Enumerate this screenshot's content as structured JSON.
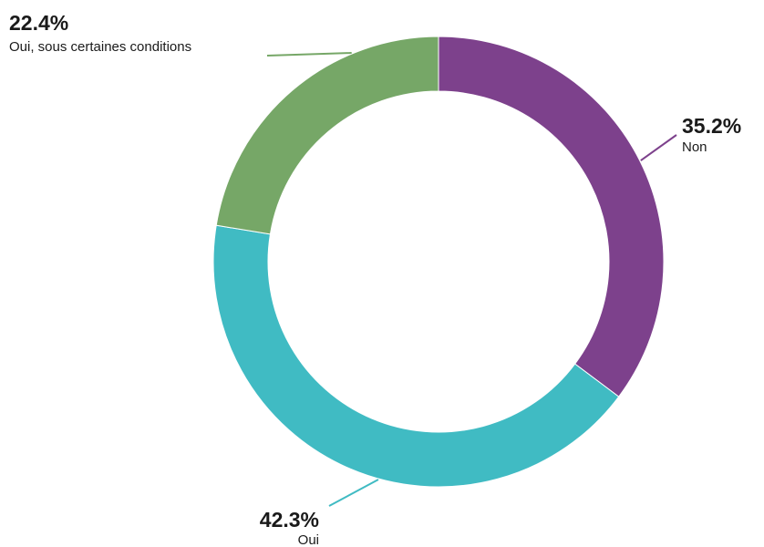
{
  "chart_data": {
    "type": "pie",
    "donut": true,
    "categories": [
      "Non",
      "Oui",
      "Oui, sous certaines conditions"
    ],
    "values": [
      35.2,
      42.3,
      22.4
    ],
    "value_labels": [
      "35.2%",
      "42.3%",
      "22.4%"
    ],
    "colors": [
      "#7d418c",
      "#40bbc3",
      "#76a767"
    ],
    "start": "top, clockwise",
    "title": "",
    "legend": "none"
  }
}
